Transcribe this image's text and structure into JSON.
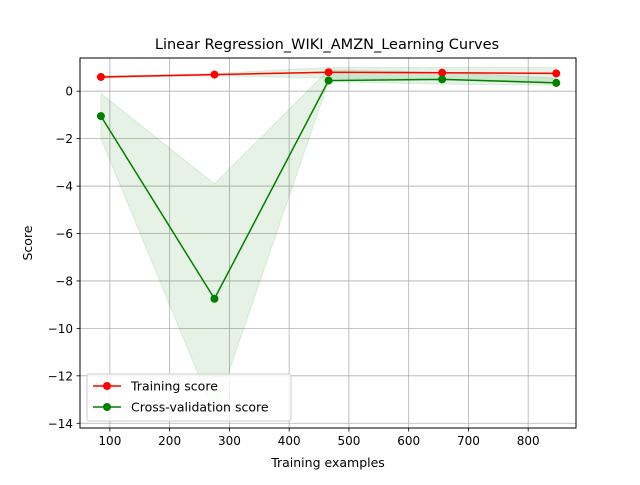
{
  "chart_data": {
    "type": "line",
    "title": "Linear Regression_WIKI_AMZN_Learning Curves",
    "xlabel": "Training examples",
    "ylabel": "Score",
    "xlim": [
      50,
      880
    ],
    "ylim": [
      -14.2,
      1.4
    ],
    "xticks": [
      100,
      200,
      300,
      400,
      500,
      600,
      700,
      800
    ],
    "xtick_labels": [
      "100",
      "200",
      "300",
      "400",
      "500",
      "600",
      "700",
      "800"
    ],
    "yticks": [
      0,
      -2,
      -4,
      -6,
      -8,
      -10,
      -12,
      -14
    ],
    "ytick_labels": [
      "0",
      "−2",
      "−4",
      "−6",
      "−8",
      "−10",
      "−12",
      "−14"
    ],
    "grid": true,
    "legend_position": "lower-left",
    "x": [
      85,
      275,
      466,
      656,
      847
    ],
    "series": [
      {
        "name": "Training score",
        "color": "#ff0000",
        "marker": "circle",
        "values": [
          0.6,
          0.7,
          0.8,
          0.78,
          0.75
        ],
        "band_lower": [
          0.55,
          0.65,
          0.55,
          0.5,
          0.4
        ],
        "band_upper": [
          0.65,
          0.75,
          1.0,
          1.0,
          1.0
        ]
      },
      {
        "name": "Cross-validation score",
        "color": "#008000",
        "marker": "circle",
        "values": [
          -1.05,
          -8.75,
          0.45,
          0.5,
          0.35
        ],
        "band_lower": [
          -2.0,
          -13.6,
          0.4,
          0.3,
          0.25
        ],
        "band_upper": [
          -0.1,
          -3.9,
          0.9,
          0.8,
          0.55
        ]
      }
    ],
    "band_color": "#008000",
    "band_opacity": 0.1
  }
}
